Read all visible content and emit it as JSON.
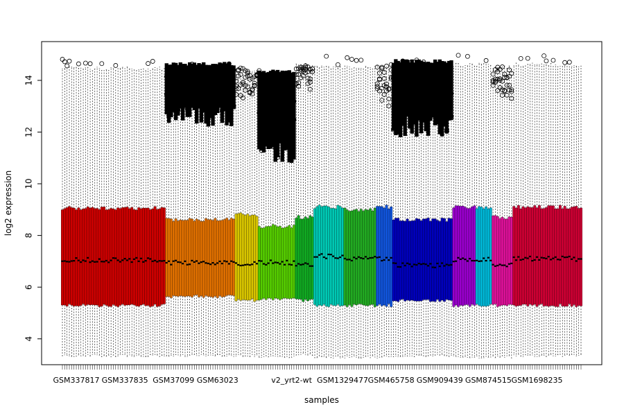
{
  "chart_data": {
    "type": "boxplot",
    "title": "",
    "xlabel": "samples",
    "ylabel": "log2 expression",
    "ylim": [
      3.0,
      15.5
    ],
    "yticks": [
      4,
      6,
      8,
      10,
      12,
      14
    ],
    "grid": false,
    "legend": "none",
    "sample_count": 225,
    "tick_labels": [
      {
        "label": "GSM337817",
        "index": 6
      },
      {
        "label": "GSM337835",
        "index": 27
      },
      {
        "label": "GSM37099",
        "index": 48
      },
      {
        "label": "GSM63023",
        "index": 67
      },
      {
        "label": "v2_yrt2-wt",
        "index": 99
      },
      {
        "label": "GSM1329477",
        "index": 121
      },
      {
        "label": "GSM465758",
        "index": 142
      },
      {
        "label": "GSM909439",
        "index": 163
      },
      {
        "label": "GSM874515",
        "index": 184
      },
      {
        "label": "GSM1698235",
        "index": 205
      }
    ],
    "groups": [
      {
        "start": 0,
        "end": 44,
        "color": "#cc0000",
        "q1": 5.3,
        "median": 7.05,
        "q3": 9.05,
        "wlo": 3.35,
        "whi": 14.45,
        "outlier_low": null,
        "outlier_level": 0
      },
      {
        "start": 45,
        "end": 74,
        "color": "#e07000",
        "q1": 5.65,
        "median": 6.95,
        "q3": 8.6,
        "wlo": 3.35,
        "whi": 14.6,
        "outlier_low": 12.6,
        "outlier_level": 2
      },
      {
        "start": 75,
        "end": 84,
        "color": "#d8c400",
        "q1": 5.5,
        "median": 6.9,
        "q3": 8.8,
        "wlo": 3.35,
        "whi": 14.4,
        "outlier_low": 13.5,
        "outlier_level": 1
      },
      {
        "start": 85,
        "end": 100,
        "color": "#55cc00",
        "q1": 5.55,
        "median": 6.95,
        "q3": 8.35,
        "wlo": 3.3,
        "whi": 14.3,
        "outlier_low": 11.2,
        "outlier_level": 3
      },
      {
        "start": 101,
        "end": 108,
        "color": "#11aa22",
        "q1": 5.5,
        "median": 6.9,
        "q3": 8.7,
        "wlo": 3.4,
        "whi": 14.6,
        "outlier_low": 13.7,
        "outlier_level": 1
      },
      {
        "start": 109,
        "end": 121,
        "color": "#00c8b4",
        "q1": 5.3,
        "median": 7.2,
        "q3": 9.1,
        "wlo": 3.3,
        "whi": 14.5,
        "outlier_low": null,
        "outlier_level": 0
      },
      {
        "start": 122,
        "end": 135,
        "color": "#22aa22",
        "q1": 5.3,
        "median": 7.1,
        "q3": 9.0,
        "wlo": 3.3,
        "whi": 14.5,
        "outlier_low": null,
        "outlier_level": 0
      },
      {
        "start": 136,
        "end": 142,
        "color": "#1155dd",
        "q1": 5.3,
        "median": 7.1,
        "q3": 9.1,
        "wlo": 3.3,
        "whi": 14.5,
        "outlier_low": 13.2,
        "outlier_level": 1
      },
      {
        "start": 143,
        "end": 168,
        "color": "#0000bb",
        "q1": 5.5,
        "median": 6.85,
        "q3": 8.6,
        "wlo": 3.35,
        "whi": 14.7,
        "outlier_low": 12.2,
        "outlier_level": 3
      },
      {
        "start": 169,
        "end": 178,
        "color": "#9900cc",
        "q1": 5.3,
        "median": 7.05,
        "q3": 9.1,
        "wlo": 3.3,
        "whi": 14.6,
        "outlier_low": null,
        "outlier_level": 0
      },
      {
        "start": 179,
        "end": 185,
        "color": "#00b8d8",
        "q1": 5.3,
        "median": 7.05,
        "q3": 9.1,
        "wlo": 3.3,
        "whi": 14.6,
        "outlier_low": null,
        "outlier_level": 0
      },
      {
        "start": 186,
        "end": 194,
        "color": "#dd1199",
        "q1": 5.3,
        "median": 6.85,
        "q3": 8.7,
        "wlo": 3.3,
        "whi": 14.5,
        "outlier_low": 13.3,
        "outlier_level": 1
      },
      {
        "start": 195,
        "end": 224,
        "color": "#cc0033",
        "q1": 5.3,
        "median": 7.1,
        "q3": 9.1,
        "wlo": 3.35,
        "whi": 14.6,
        "outlier_low": null,
        "outlier_level": 0
      }
    ]
  }
}
